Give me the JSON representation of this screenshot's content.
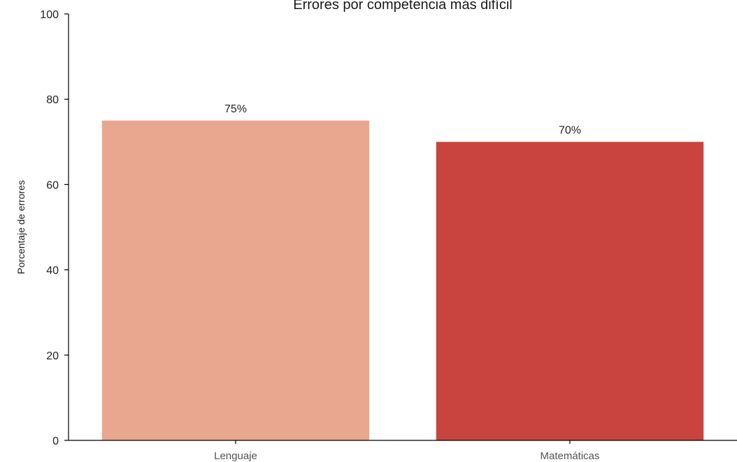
{
  "chart_data": {
    "type": "bar",
    "title": "Errores por competencia más difícil",
    "xlabel": "",
    "ylabel": "Porcentaje de errores",
    "categories": [
      "Lenguaje",
      "Matemáticas"
    ],
    "values": [
      75,
      70
    ],
    "data_labels": [
      "75%",
      "70%"
    ],
    "colors": [
      "#eaa78f",
      "#c9443e"
    ],
    "ylim": [
      0,
      100
    ],
    "yticks": [
      "0",
      "20",
      "40",
      "60",
      "80",
      "100"
    ],
    "grid": false,
    "legend": "none"
  }
}
